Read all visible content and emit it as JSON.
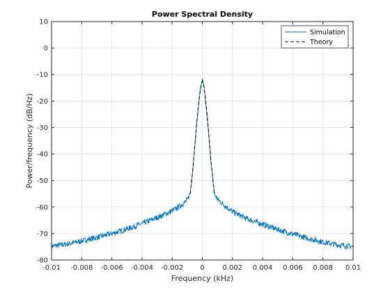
{
  "chart_data": {
    "type": "line",
    "title": "Power Spectral Density",
    "xlabel": "Frequency (kHz)",
    "ylabel": "Power/frequency (dB/Hz)",
    "xlim": [
      -0.01,
      0.01
    ],
    "ylim": [
      -80,
      10
    ],
    "x_ticks": [
      -0.01,
      -0.008,
      -0.006,
      -0.004,
      -0.002,
      0,
      0.002,
      0.004,
      0.006,
      0.008,
      0.01
    ],
    "x_tick_labels": [
      "-0.01",
      "-0.008",
      "-0.006",
      "-0.004",
      "-0.002",
      "0",
      "0.002",
      "0.004",
      "0.006",
      "0.008",
      "0.01"
    ],
    "y_ticks": [
      -80,
      -70,
      -60,
      -50,
      -40,
      -30,
      -20,
      -10,
      0,
      10
    ],
    "y_tick_labels": [
      "-80",
      "-70",
      "-60",
      "-50",
      "-40",
      "-30",
      "-20",
      "-10",
      "0",
      "10"
    ],
    "grid": true,
    "legend_position": "top-right",
    "series": [
      {
        "name": "Simulation",
        "color": "#0072bd",
        "style": "solid",
        "x": [
          -0.01,
          -0.009,
          -0.008,
          -0.007,
          -0.006,
          -0.005,
          -0.004,
          -0.003,
          -0.002,
          -0.0015,
          -0.001,
          -0.0008,
          -0.0006,
          -0.0004,
          -0.0002,
          -0.0001,
          0,
          0.0001,
          0.0002,
          0.0004,
          0.0006,
          0.0008,
          0.001,
          0.0015,
          0.002,
          0.003,
          0.004,
          0.005,
          0.006,
          0.007,
          0.008,
          0.009,
          0.01
        ],
        "y": [
          -74.8,
          -74.0,
          -72.8,
          -71.5,
          -70.0,
          -68.3,
          -66.3,
          -64.0,
          -61.5,
          -59.7,
          -57.5,
          -54.5,
          -44.0,
          -30.0,
          -19.0,
          -15.0,
          -11.5,
          -14.0,
          -19.5,
          -31.0,
          -45.0,
          -55.0,
          -57.0,
          -59.5,
          -61.8,
          -64.5,
          -66.5,
          -68.5,
          -70.2,
          -71.8,
          -73.2,
          -74.3,
          -75.0
        ]
      },
      {
        "name": "Theory",
        "color": "#000000",
        "style": "dashed",
        "x": [
          -0.0008,
          -0.0006,
          -0.0004,
          -0.0003,
          -0.0002,
          -0.0001,
          0,
          0.0001,
          0.0002,
          0.0003,
          0.0004,
          0.0006,
          0.0008
        ],
        "y": [
          -55.0,
          -44.0,
          -30.5,
          -24.0,
          -18.5,
          -14.2,
          -12.5,
          -14.2,
          -18.5,
          -24.0,
          -30.5,
          -44.0,
          -55.0
        ]
      }
    ]
  }
}
